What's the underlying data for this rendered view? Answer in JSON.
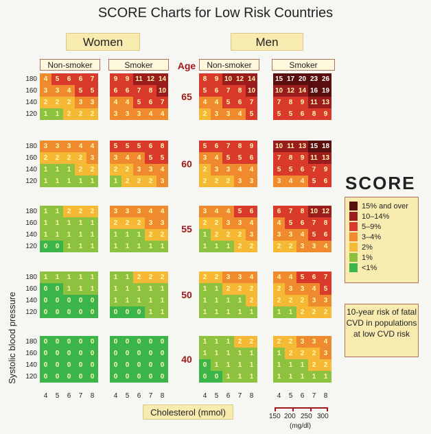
{
  "title": "SCORE Charts for Low Risk Countries",
  "groups": {
    "women": "Women",
    "men": "Men"
  },
  "col_headers": [
    "Non-smoker",
    "Smoker",
    "Non-smoker",
    "Smoker"
  ],
  "age_header": "Age",
  "y_axis_label": "Systolic blood pressure",
  "x_axis_label": "Cholesterol (mmol)",
  "mgdl_ticks": [
    "150",
    "200",
    "250",
    "300"
  ],
  "mgdl_unit": "(mg/dl)",
  "logo": "SCORE",
  "legend": [
    {
      "label": "15% and over",
      "color": "#5a0f0f"
    },
    {
      "label": "10–14%",
      "color": "#9b1c1c"
    },
    {
      "label": "5–9%",
      "color": "#d93a2b"
    },
    {
      "label": "3–4%",
      "color": "#ef8a2e"
    },
    {
      "label": "2%",
      "color": "#f5b935"
    },
    {
      "label": "1%",
      "color": "#8cc240"
    },
    {
      "label": "<1%",
      "color": "#3bb54a"
    }
  ],
  "note": "10-year risk of fatal CVD in populations at low CVD risk",
  "chart_data": {
    "type": "heatmap",
    "title": "SCORE Charts for Low Risk Countries",
    "xlabel": "Cholesterol (mmol)",
    "ylabel": "Systolic blood pressure",
    "x": [
      4,
      5,
      6,
      7,
      8
    ],
    "y": [
      180,
      160,
      140,
      120
    ],
    "ages": [
      65,
      60,
      55,
      50,
      40
    ],
    "panels": [
      {
        "sex": "Women",
        "smoking": "Non-smoker",
        "values": [
          [
            [
              4,
              5,
              6,
              6,
              7
            ],
            [
              3,
              3,
              4,
              5,
              5
            ],
            [
              2,
              2,
              2,
              3,
              3
            ],
            [
              1,
              1,
              2,
              2,
              2
            ]
          ],
          [
            [
              3,
              3,
              3,
              4,
              4
            ],
            [
              2,
              2,
              2,
              2,
              3
            ],
            [
              1,
              1,
              1,
              2,
              2
            ],
            [
              1,
              1,
              1,
              1,
              1
            ]
          ],
          [
            [
              1,
              1,
              2,
              2,
              2
            ],
            [
              1,
              1,
              1,
              1,
              1
            ],
            [
              1,
              1,
              1,
              1,
              1
            ],
            [
              0,
              0,
              1,
              1,
              1
            ]
          ],
          [
            [
              1,
              1,
              1,
              1,
              1
            ],
            [
              0,
              0,
              1,
              1,
              1
            ],
            [
              0,
              0,
              0,
              0,
              0
            ],
            [
              0,
              0,
              0,
              0,
              0
            ]
          ],
          [
            [
              0,
              0,
              0,
              0,
              0
            ],
            [
              0,
              0,
              0,
              0,
              0
            ],
            [
              0,
              0,
              0,
              0,
              0
            ],
            [
              0,
              0,
              0,
              0,
              0
            ]
          ]
        ]
      },
      {
        "sex": "Women",
        "smoking": "Smoker",
        "values": [
          [
            [
              9,
              9,
              11,
              12,
              14
            ],
            [
              6,
              6,
              7,
              8,
              10
            ],
            [
              4,
              4,
              5,
              6,
              7
            ],
            [
              3,
              3,
              3,
              4,
              4
            ]
          ],
          [
            [
              5,
              5,
              5,
              6,
              8
            ],
            [
              3,
              4,
              4,
              5,
              5
            ],
            [
              2,
              2,
              3,
              3,
              4
            ],
            [
              1,
              2,
              2,
              2,
              3
            ]
          ],
          [
            [
              3,
              3,
              3,
              4,
              4
            ],
            [
              2,
              2,
              2,
              3,
              3
            ],
            [
              1,
              1,
              1,
              2,
              2
            ],
            [
              1,
              1,
              1,
              1,
              1
            ]
          ],
          [
            [
              1,
              1,
              2,
              2,
              2
            ],
            [
              1,
              1,
              1,
              1,
              1
            ],
            [
              1,
              1,
              1,
              1,
              1
            ],
            [
              0,
              0,
              0,
              1,
              1
            ]
          ],
          [
            [
              0,
              0,
              0,
              0,
              0
            ],
            [
              0,
              0,
              0,
              0,
              0
            ],
            [
              0,
              0,
              0,
              0,
              0
            ],
            [
              0,
              0,
              0,
              0,
              0
            ]
          ]
        ]
      },
      {
        "sex": "Men",
        "smoking": "Non-smoker",
        "values": [
          [
            [
              8,
              9,
              10,
              12,
              14
            ],
            [
              5,
              6,
              7,
              8,
              10
            ],
            [
              4,
              4,
              5,
              6,
              7
            ],
            [
              2,
              3,
              3,
              4,
              5
            ]
          ],
          [
            [
              5,
              6,
              7,
              8,
              9
            ],
            [
              3,
              4,
              5,
              5,
              6
            ],
            [
              2,
              3,
              3,
              4,
              4
            ],
            [
              2,
              2,
              2,
              3,
              3
            ]
          ],
          [
            [
              3,
              4,
              4,
              5,
              6
            ],
            [
              2,
              2,
              3,
              3,
              4
            ],
            [
              1,
              2,
              2,
              2,
              3
            ],
            [
              1,
              1,
              1,
              2,
              2
            ]
          ],
          [
            [
              2,
              2,
              3,
              3,
              4
            ],
            [
              1,
              1,
              2,
              2,
              2
            ],
            [
              1,
              1,
              1,
              1,
              2
            ],
            [
              1,
              1,
              1,
              1,
              1
            ]
          ],
          [
            [
              1,
              1,
              1,
              2,
              2
            ],
            [
              1,
              1,
              1,
              1,
              1
            ],
            [
              0,
              1,
              1,
              1,
              1
            ],
            [
              0,
              0,
              1,
              1,
              1
            ]
          ]
        ]
      },
      {
        "sex": "Men",
        "smoking": "Smoker",
        "values": [
          [
            [
              15,
              17,
              20,
              23,
              26
            ],
            [
              10,
              12,
              14,
              16,
              19
            ],
            [
              7,
              8,
              9,
              11,
              13
            ],
            [
              5,
              5,
              6,
              8,
              9
            ]
          ],
          [
            [
              10,
              11,
              13,
              15,
              18
            ],
            [
              7,
              8,
              9,
              11,
              13
            ],
            [
              5,
              5,
              6,
              7,
              9
            ],
            [
              3,
              4,
              4,
              5,
              6
            ]
          ],
          [
            [
              6,
              7,
              8,
              10,
              12
            ],
            [
              4,
              5,
              6,
              7,
              8
            ],
            [
              3,
              3,
              4,
              5,
              6
            ],
            [
              2,
              2,
              3,
              3,
              4
            ]
          ],
          [
            [
              4,
              4,
              5,
              6,
              7
            ],
            [
              2,
              3,
              3,
              4,
              5
            ],
            [
              2,
              2,
              2,
              3,
              3
            ],
            [
              1,
              1,
              2,
              2,
              2
            ]
          ],
          [
            [
              2,
              2,
              3,
              3,
              4
            ],
            [
              1,
              2,
              2,
              2,
              3
            ],
            [
              1,
              1,
              1,
              2,
              2
            ],
            [
              1,
              1,
              1,
              1,
              1
            ]
          ]
        ]
      }
    ]
  }
}
